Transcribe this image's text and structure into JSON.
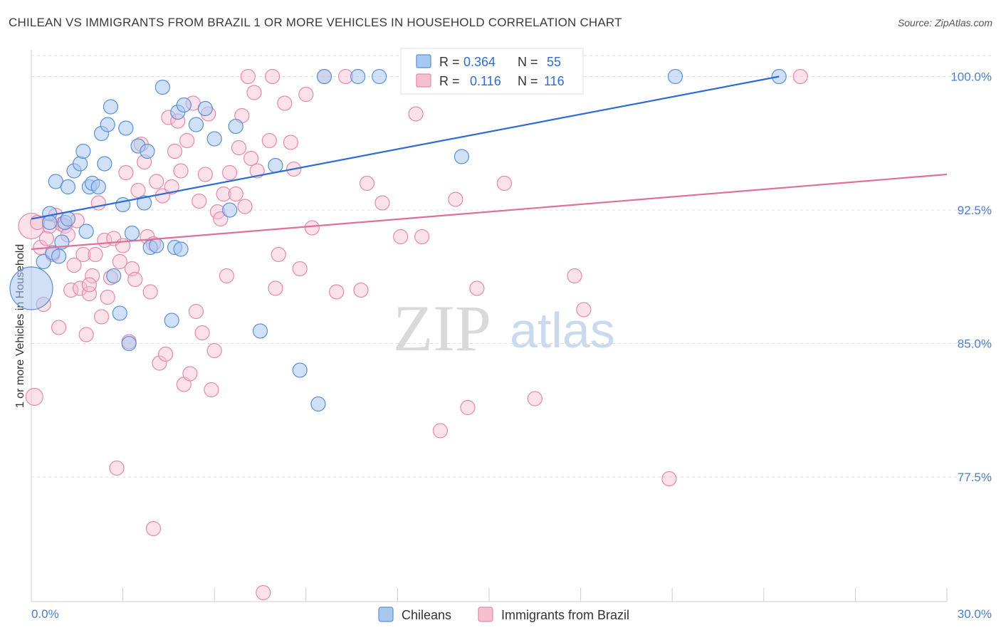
{
  "title": "CHILEAN VS IMMIGRANTS FROM BRAZIL 1 OR MORE VEHICLES IN HOUSEHOLD CORRELATION CHART",
  "source": "Source: ZipAtlas.com",
  "watermark": {
    "zip": "ZIP",
    "atlas": "atlas"
  },
  "colors": {
    "blue_fill": "#a9c8f0",
    "blue_stroke": "#5b8fd6",
    "blue_line": "#2f6bd6",
    "pink_fill": "#f6bfd0",
    "pink_stroke": "#e889a8",
    "pink_line": "#e0709a",
    "grid": "#dddddd",
    "tick_text": "#4a7fc8"
  },
  "legend": {
    "r_label": "R =",
    "n_label": "N =",
    "rows": [
      {
        "r": "0.364",
        "n": "55"
      },
      {
        "r": "0.116",
        "n": "116"
      }
    ]
  },
  "bottom_legend": [
    "Chileans",
    "Immigrants from Brazil"
  ],
  "chart_data": {
    "type": "scatter",
    "xlabel": "",
    "ylabel": "1 or more Vehicles in Household",
    "xlim": [
      0,
      30
    ],
    "ylim": [
      70.5,
      101.5
    ],
    "x_tick_labels": [
      "0.0%",
      "30.0%"
    ],
    "y_ticks": [
      77.5,
      85.0,
      92.5,
      100.0
    ],
    "y_tick_labels": [
      "77.5%",
      "85.0%",
      "92.5%",
      "100.0%"
    ],
    "grid": true,
    "legend_placement": "top-center",
    "series": [
      {
        "name": "Chileans",
        "trend": {
          "x": [
            0,
            24.5
          ],
          "y": [
            92.0,
            100.0
          ]
        },
        "points": [
          [
            0.0,
            88.1,
            30
          ],
          [
            0.4,
            89.6,
            10
          ],
          [
            0.6,
            92.3,
            10
          ],
          [
            0.6,
            91.8,
            10
          ],
          [
            0.7,
            90.1,
            10
          ],
          [
            0.8,
            94.1,
            10
          ],
          [
            1.0,
            90.7,
            10
          ],
          [
            1.1,
            91.8,
            10
          ],
          [
            1.2,
            92.0,
            10
          ],
          [
            1.2,
            93.8,
            10
          ],
          [
            1.4,
            94.7,
            10
          ],
          [
            1.6,
            95.1,
            10
          ],
          [
            1.7,
            95.8,
            10
          ],
          [
            1.8,
            91.3,
            10
          ],
          [
            1.9,
            93.8,
            10
          ],
          [
            2.0,
            94.0,
            10
          ],
          [
            2.2,
            93.8,
            10
          ],
          [
            2.3,
            96.8,
            10
          ],
          [
            2.4,
            95.1,
            10
          ],
          [
            2.5,
            97.3,
            10
          ],
          [
            2.6,
            98.3,
            10
          ],
          [
            2.7,
            88.8,
            10
          ],
          [
            2.9,
            86.7,
            10
          ],
          [
            3.0,
            92.8,
            10
          ],
          [
            3.1,
            97.1,
            10
          ],
          [
            3.2,
            85.0,
            10
          ],
          [
            3.3,
            91.2,
            10
          ],
          [
            3.5,
            96.1,
            10
          ],
          [
            3.7,
            92.9,
            10
          ],
          [
            3.8,
            95.8,
            10
          ],
          [
            3.9,
            90.4,
            10
          ],
          [
            4.1,
            90.5,
            10
          ],
          [
            4.3,
            99.4,
            10
          ],
          [
            4.6,
            86.3,
            10
          ],
          [
            4.7,
            90.4,
            10
          ],
          [
            4.8,
            98.0,
            10
          ],
          [
            4.9,
            90.3,
            10
          ],
          [
            5.0,
            98.4,
            10
          ],
          [
            5.4,
            97.3,
            10
          ],
          [
            5.7,
            98.2,
            10
          ],
          [
            6.0,
            96.5,
            10
          ],
          [
            6.5,
            92.5,
            10
          ],
          [
            6.7,
            97.2,
            10
          ],
          [
            7.5,
            85.7,
            10
          ],
          [
            8.0,
            95.0,
            10
          ],
          [
            8.8,
            83.5,
            10
          ],
          [
            9.4,
            81.6,
            10
          ],
          [
            9.6,
            100.0,
            10
          ],
          [
            10.7,
            100.0,
            10
          ],
          [
            11.4,
            100.0,
            10
          ],
          [
            12.5,
            100.0,
            10
          ],
          [
            14.1,
            95.5,
            10
          ],
          [
            21.1,
            100.0,
            10
          ],
          [
            24.5,
            100.0,
            10
          ],
          [
            0.9,
            89.9,
            10
          ]
        ]
      },
      {
        "name": "Immigrants from Brazil",
        "trend": {
          "x": [
            0,
            30
          ],
          "y": [
            90.3,
            94.5
          ]
        },
        "points": [
          [
            0.0,
            91.6,
            18
          ],
          [
            0.1,
            82.0,
            12
          ],
          [
            0.2,
            91.8,
            10
          ],
          [
            0.3,
            90.4,
            10
          ],
          [
            0.4,
            87.2,
            10
          ],
          [
            0.5,
            90.9,
            10
          ],
          [
            0.6,
            91.6,
            10
          ],
          [
            0.7,
            90.0,
            10
          ],
          [
            0.8,
            92.2,
            10
          ],
          [
            0.9,
            85.9,
            10
          ],
          [
            1.0,
            91.7,
            10
          ],
          [
            1.1,
            91.6,
            10
          ],
          [
            1.2,
            91.1,
            10
          ],
          [
            1.3,
            88.0,
            10
          ],
          [
            1.4,
            89.4,
            10
          ],
          [
            1.5,
            91.9,
            10
          ],
          [
            1.6,
            88.1,
            10
          ],
          [
            1.7,
            90.0,
            10
          ],
          [
            1.8,
            85.5,
            10
          ],
          [
            1.9,
            87.8,
            10
          ],
          [
            2.0,
            88.8,
            10
          ],
          [
            2.1,
            90.0,
            10
          ],
          [
            2.2,
            92.9,
            10
          ],
          [
            2.3,
            86.5,
            10
          ],
          [
            2.4,
            90.8,
            10
          ],
          [
            2.5,
            87.6,
            10
          ],
          [
            2.6,
            88.7,
            10
          ],
          [
            2.7,
            90.9,
            10
          ],
          [
            2.8,
            78.0,
            10
          ],
          [
            2.9,
            89.6,
            10
          ],
          [
            3.0,
            90.5,
            10
          ],
          [
            3.1,
            94.6,
            10
          ],
          [
            3.2,
            85.1,
            10
          ],
          [
            3.3,
            89.2,
            10
          ],
          [
            3.4,
            88.6,
            10
          ],
          [
            3.5,
            93.6,
            10
          ],
          [
            3.6,
            96.2,
            10
          ],
          [
            3.7,
            95.2,
            10
          ],
          [
            3.8,
            91.0,
            10
          ],
          [
            3.9,
            87.9,
            10
          ],
          [
            4.0,
            90.6,
            10
          ],
          [
            4.1,
            94.1,
            10
          ],
          [
            4.2,
            83.9,
            10
          ],
          [
            4.3,
            93.3,
            10
          ],
          [
            4.4,
            84.4,
            10
          ],
          [
            4.5,
            97.7,
            10
          ],
          [
            4.6,
            93.8,
            10
          ],
          [
            4.7,
            95.8,
            10
          ],
          [
            4.8,
            97.5,
            10
          ],
          [
            4.9,
            94.7,
            10
          ],
          [
            5.0,
            82.7,
            10
          ],
          [
            5.1,
            96.4,
            10
          ],
          [
            5.2,
            83.3,
            10
          ],
          [
            5.3,
            98.5,
            10
          ],
          [
            5.4,
            86.8,
            10
          ],
          [
            5.5,
            93.0,
            10
          ],
          [
            5.6,
            85.6,
            10
          ],
          [
            5.7,
            94.5,
            10
          ],
          [
            5.8,
            97.9,
            10
          ],
          [
            5.9,
            82.4,
            10
          ],
          [
            6.0,
            84.6,
            10
          ],
          [
            6.1,
            92.4,
            10
          ],
          [
            6.2,
            92.0,
            10
          ],
          [
            6.3,
            93.4,
            10
          ],
          [
            6.4,
            88.8,
            10
          ],
          [
            6.5,
            94.6,
            10
          ],
          [
            6.7,
            93.4,
            10
          ],
          [
            6.8,
            96.0,
            10
          ],
          [
            6.9,
            97.8,
            10
          ],
          [
            7.0,
            92.7,
            10
          ],
          [
            7.1,
            100.0,
            10
          ],
          [
            7.2,
            95.4,
            10
          ],
          [
            7.3,
            99.1,
            10
          ],
          [
            7.4,
            94.7,
            10
          ],
          [
            7.6,
            71.0,
            10
          ],
          [
            7.8,
            96.4,
            10
          ],
          [
            7.9,
            100.0,
            10
          ],
          [
            8.0,
            88.1,
            10
          ],
          [
            8.1,
            90.0,
            10
          ],
          [
            8.3,
            98.5,
            10
          ],
          [
            8.5,
            96.3,
            10
          ],
          [
            8.6,
            94.8,
            10
          ],
          [
            8.8,
            89.2,
            10
          ],
          [
            9.0,
            99.0,
            10
          ],
          [
            9.2,
            91.5,
            10
          ],
          [
            9.6,
            100.0,
            10
          ],
          [
            10.0,
            87.9,
            10
          ],
          [
            10.3,
            100.0,
            10
          ],
          [
            10.8,
            88.0,
            10
          ],
          [
            11.0,
            94.0,
            10
          ],
          [
            11.5,
            92.9,
            10
          ],
          [
            12.1,
            91.0,
            10
          ],
          [
            12.6,
            97.9,
            10
          ],
          [
            12.8,
            91.0,
            10
          ],
          [
            13.0,
            100.0,
            10
          ],
          [
            13.4,
            80.1,
            10
          ],
          [
            13.7,
            100.0,
            10
          ],
          [
            13.9,
            93.1,
            10
          ],
          [
            14.3,
            81.4,
            10
          ],
          [
            14.6,
            88.1,
            10
          ],
          [
            15.1,
            100.0,
            10
          ],
          [
            15.5,
            94.0,
            10
          ],
          [
            16.0,
            100.0,
            10
          ],
          [
            16.5,
            81.9,
            10
          ],
          [
            17.2,
            100.0,
            10
          ],
          [
            17.8,
            88.8,
            10
          ],
          [
            18.1,
            86.9,
            10
          ],
          [
            20.9,
            77.4,
            10
          ],
          [
            25.2,
            100.0,
            10
          ],
          [
            4.0,
            74.6,
            10
          ],
          [
            1.9,
            88.3,
            10
          ]
        ]
      }
    ]
  }
}
